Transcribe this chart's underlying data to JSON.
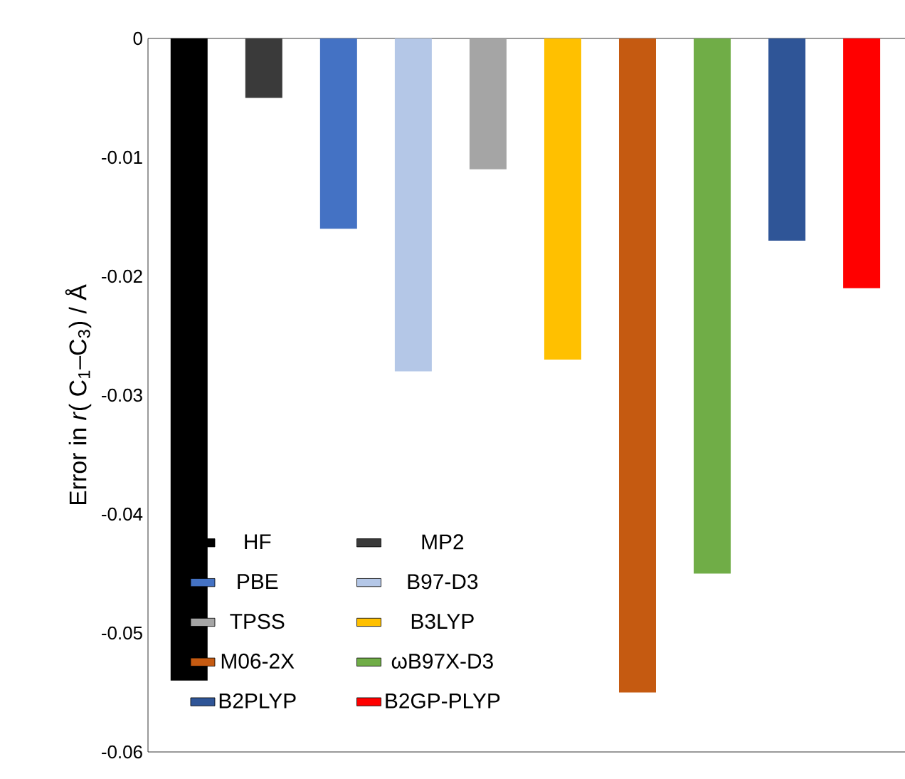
{
  "chart_data": {
    "type": "bar",
    "ylabel": "Error in *r*( C$_{1}$–C$_{3}$) / Å",
    "categories": [
      null,
      null,
      null,
      null,
      null,
      null,
      null,
      null,
      null,
      null
    ],
    "series": [
      {
        "name": "HF",
        "color": "#000000",
        "values": [
          -0.054,
          null,
          null,
          null,
          null,
          null,
          null,
          null,
          null,
          null
        ]
      },
      {
        "name": "MP2",
        "color": "#3a3a3a",
        "values": [
          null,
          -0.005,
          null,
          null,
          null,
          null,
          null,
          null,
          null,
          null
        ]
      },
      {
        "name": "PBE",
        "color": "#4472c4",
        "values": [
          null,
          null,
          -0.016,
          null,
          null,
          null,
          null,
          null,
          null,
          null
        ]
      },
      {
        "name": "B97-D3",
        "color": "#b4c7e7",
        "values": [
          null,
          null,
          null,
          -0.028,
          null,
          null,
          null,
          null,
          null,
          null
        ]
      },
      {
        "name": "TPSS",
        "color": "#a5a5a5",
        "values": [
          null,
          null,
          null,
          null,
          -0.011,
          null,
          null,
          null,
          null,
          null
        ]
      },
      {
        "name": "B3LYP",
        "color": "#ffc000",
        "values": [
          null,
          null,
          null,
          null,
          null,
          -0.027,
          null,
          null,
          null,
          null
        ]
      },
      {
        "name": "M06-2X",
        "color": "#c55a11",
        "values": [
          null,
          null,
          null,
          null,
          null,
          null,
          -0.055,
          null,
          null,
          null
        ]
      },
      {
        "name": "ωB97X-D3",
        "color": "#70ad47",
        "values": [
          null,
          null,
          null,
          null,
          null,
          null,
          null,
          -0.045,
          null,
          null
        ]
      },
      {
        "name": "B2PLYP",
        "color": "#2f5597",
        "values": [
          null,
          null,
          null,
          null,
          null,
          null,
          null,
          null,
          -0.017,
          null
        ]
      },
      {
        "name": "B2GP-PLYP",
        "color": "#ff0000",
        "values": [
          null,
          null,
          null,
          null,
          null,
          null,
          null,
          null,
          null,
          -0.021
        ]
      }
    ],
    "ylim": [
      -0.06,
      0
    ],
    "yticks": [
      -0.06,
      -0.05,
      -0.04,
      -0.03,
      -0.02,
      -0.01,
      0
    ],
    "legend": "bottom left",
    "grid": false
  }
}
